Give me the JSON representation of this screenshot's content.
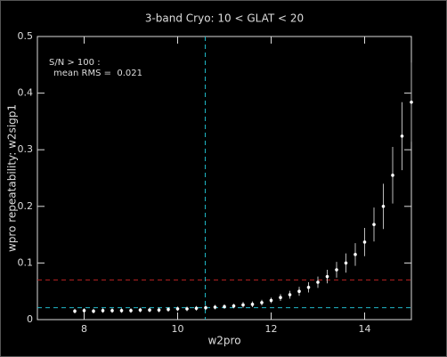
{
  "chart_data": {
    "type": "errorbar",
    "title": "3-band Cryo:  10 < GLAT < 20",
    "x_label": "w2pro",
    "y_label": "wpro repeatability: w2sigp1",
    "annotations": [
      "S/N > 100 :",
      "mean RMS =  0.021"
    ],
    "annotation_color": "#20b8a0",
    "x": [
      7.8,
      8.0,
      8.2,
      8.4,
      8.6,
      8.8,
      9.0,
      9.2,
      9.4,
      9.6,
      9.8,
      10.0,
      10.2,
      10.4,
      10.6,
      10.8,
      11.0,
      11.2,
      11.4,
      11.6,
      11.8,
      12.0,
      12.2,
      12.4,
      12.6,
      12.8,
      13.0,
      13.2,
      13.4,
      13.6,
      13.8,
      14.0,
      14.2,
      14.4,
      14.6,
      14.8,
      15.0
    ],
    "values": [
      0.015,
      0.016,
      0.015,
      0.016,
      0.016,
      0.016,
      0.016,
      0.017,
      0.017,
      0.017,
      0.018,
      0.019,
      0.019,
      0.02,
      0.021,
      0.022,
      0.023,
      0.024,
      0.026,
      0.027,
      0.03,
      0.034,
      0.039,
      0.044,
      0.05,
      0.057,
      0.066,
      0.076,
      0.088,
      0.1,
      0.115,
      0.137,
      0.168,
      0.2,
      0.255,
      0.324,
      0.384
    ],
    "errors": [
      0.004,
      0.004,
      0.004,
      0.004,
      0.004,
      0.004,
      0.004,
      0.004,
      0.004,
      0.004,
      0.004,
      0.004,
      0.004,
      0.004,
      0.004,
      0.004,
      0.004,
      0.004,
      0.005,
      0.005,
      0.005,
      0.005,
      0.006,
      0.007,
      0.008,
      0.009,
      0.01,
      0.012,
      0.014,
      0.017,
      0.02,
      0.025,
      0.03,
      0.04,
      0.05,
      0.06,
      0.07
    ],
    "color": "#ffffff",
    "xlim": [
      7,
      15
    ],
    "ylim": [
      0,
      0.5
    ],
    "xticks": [
      8,
      10,
      12,
      14
    ],
    "yticks": [
      0,
      0.1,
      0.2,
      0.3,
      0.4,
      0.5
    ],
    "vlines": [
      {
        "value": 10.59,
        "color": "#20b8c8"
      }
    ],
    "hlines": [
      {
        "value": 0.021,
        "color": "#20b8c8"
      },
      {
        "value": 0.07,
        "color": "#b02020"
      }
    ]
  }
}
